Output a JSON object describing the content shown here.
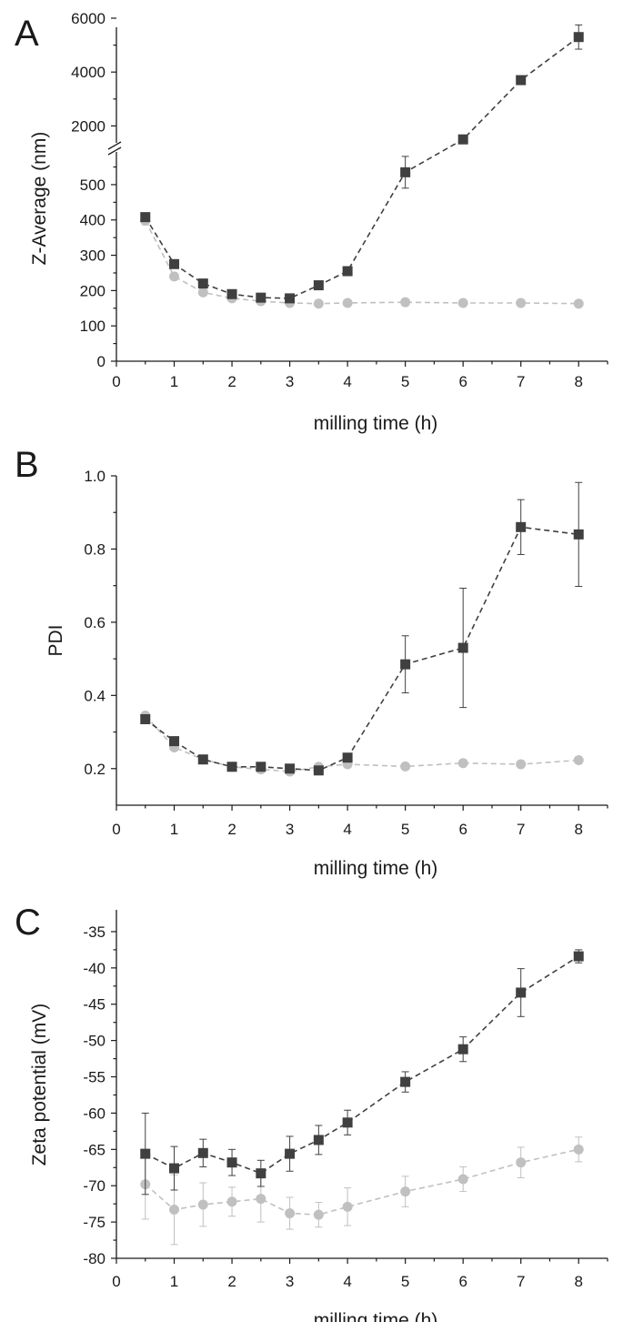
{
  "chart_data": [
    {
      "panel": "A",
      "type": "line",
      "xlabel": "milling time (h)",
      "ylabel": "Z-Average (nm)",
      "xlim": [
        0,
        8.5
      ],
      "xticks": [
        0,
        1,
        2,
        3,
        4,
        5,
        6,
        7,
        8
      ],
      "y_axis_break": true,
      "ylim_lower": [
        0,
        590
      ],
      "yticks_lower": [
        0,
        100,
        200,
        300,
        400,
        500
      ],
      "ylim_upper": [
        1000,
        6000
      ],
      "yticks_upper": [
        2000,
        4000,
        6000
      ],
      "series": [
        {
          "marker": "square",
          "color": "#404040",
          "x": [
            0.5,
            1,
            1.5,
            2,
            2.5,
            3,
            3.5,
            4,
            5,
            6,
            7,
            8
          ],
          "y": [
            408,
            275,
            220,
            190,
            180,
            178,
            215,
            255,
            535,
            1500,
            3700,
            5300
          ],
          "err": [
            5,
            5,
            5,
            4,
            3,
            3,
            4,
            5,
            45,
            0,
            0,
            450
          ]
        },
        {
          "marker": "circle",
          "color": "#c0c0c0",
          "x": [
            0.5,
            1,
            1.5,
            2,
            2.5,
            3,
            3.5,
            4,
            5,
            6,
            7,
            8
          ],
          "y": [
            398,
            240,
            195,
            178,
            170,
            165,
            163,
            165,
            167,
            165,
            165,
            163
          ],
          "err": [
            12,
            5,
            4,
            3,
            3,
            3,
            3,
            3,
            3,
            3,
            3,
            3
          ]
        }
      ]
    },
    {
      "panel": "B",
      "type": "line",
      "xlabel": "milling time (h)",
      "ylabel": "PDI",
      "xlim": [
        0,
        8.5
      ],
      "xticks": [
        0,
        1,
        2,
        3,
        4,
        5,
        6,
        7,
        8
      ],
      "ylim": [
        0.1,
        1.0
      ],
      "yticks": [
        0.2,
        0.4,
        0.6,
        0.8,
        1.0
      ],
      "ytick_labels": [
        "0.2",
        "0.4",
        "0.6",
        "0.8",
        "1.0"
      ],
      "series": [
        {
          "marker": "square",
          "color": "#404040",
          "x": [
            0.5,
            1,
            1.5,
            2,
            2.5,
            3,
            3.5,
            4,
            5,
            6,
            7,
            8
          ],
          "y": [
            0.335,
            0.275,
            0.225,
            0.205,
            0.205,
            0.2,
            0.195,
            0.23,
            0.485,
            0.53,
            0.86,
            0.84
          ],
          "err": [
            0.005,
            0.005,
            0.005,
            0.005,
            0.005,
            0.005,
            0.005,
            0.005,
            0.078,
            0.163,
            0.075,
            0.142
          ]
        },
        {
          "marker": "circle",
          "color": "#c0c0c0",
          "x": [
            0.5,
            1,
            1.5,
            2,
            2.5,
            3,
            3.5,
            4,
            5,
            6,
            7,
            8
          ],
          "y": [
            0.345,
            0.258,
            0.225,
            0.205,
            0.198,
            0.192,
            0.205,
            0.212,
            0.206,
            0.215,
            0.212,
            0.223
          ],
          "err": [
            0.005,
            0.005,
            0.005,
            0.005,
            0.005,
            0.005,
            0.005,
            0.005,
            0.005,
            0.005,
            0.005,
            0.005
          ]
        }
      ]
    },
    {
      "panel": "C",
      "type": "line",
      "xlabel": "milling time (h)",
      "ylabel": "Zeta potential (mV)",
      "xlim": [
        0,
        8.5
      ],
      "xticks": [
        0,
        1,
        2,
        3,
        4,
        5,
        6,
        7,
        8
      ],
      "ylim": [
        -80,
        -32
      ],
      "yticks": [
        -80,
        -75,
        -70,
        -65,
        -60,
        -55,
        -50,
        -45,
        -40,
        -35
      ],
      "series": [
        {
          "marker": "square",
          "color": "#404040",
          "x": [
            0.5,
            1,
            1.5,
            2,
            2.5,
            3,
            3.5,
            4,
            5,
            6,
            7,
            8
          ],
          "y": [
            -65.6,
            -67.6,
            -65.5,
            -66.8,
            -68.3,
            -65.6,
            -63.7,
            -61.3,
            -55.7,
            -51.2,
            -43.4,
            -38.4
          ],
          "err": [
            5.6,
            3.0,
            1.9,
            1.8,
            1.8,
            2.4,
            2.0,
            1.7,
            1.4,
            1.7,
            3.3,
            0.9
          ]
        },
        {
          "marker": "circle",
          "color": "#c0c0c0",
          "x": [
            0.5,
            1,
            1.5,
            2,
            2.5,
            3,
            3.5,
            4,
            5,
            6,
            7,
            8
          ],
          "y": [
            -69.8,
            -73.3,
            -72.6,
            -72.2,
            -71.8,
            -73.8,
            -74.0,
            -72.9,
            -70.8,
            -69.1,
            -66.8,
            -65.0
          ],
          "err": [
            4.8,
            4.8,
            3.0,
            2.0,
            3.2,
            2.2,
            1.7,
            2.6,
            2.1,
            1.7,
            2.1,
            1.7
          ]
        }
      ]
    }
  ]
}
